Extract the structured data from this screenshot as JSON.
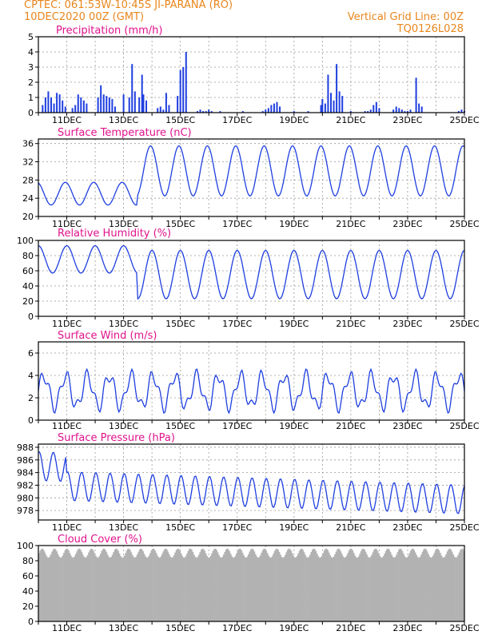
{
  "header": {
    "line1_left": "CPTEC:   061:53W-10:45S   JI-PARANA (RO)",
    "line2_left": "10DEC2020 00Z (GMT)",
    "line1_right": "Vertical Grid Line: 00Z",
    "line2_right": "TQ0126L028"
  },
  "colors": {
    "header": "#e8861c",
    "title": "#e0128c",
    "series": "#1f3fe0",
    "cloud": "#b2b2b2",
    "grid": "#9a9a9a"
  },
  "x_tick_labels": [
    "11DEC",
    "13DEC",
    "15DEC",
    "17DEC",
    "19DEC",
    "21DEC",
    "23DEC",
    "25DEC"
  ],
  "chart_data": [
    {
      "type": "bar",
      "title": "Precipitation (mm/h)",
      "x_unit": "days since 10DEC2020 00Z",
      "ylim": [
        0,
        5
      ],
      "yticks": [
        0,
        1,
        2,
        3,
        4,
        5
      ],
      "x": [
        0.15,
        0.25,
        0.35,
        0.45,
        0.55,
        0.65,
        0.75,
        0.85,
        0.95,
        1.2,
        1.3,
        1.4,
        1.5,
        1.6,
        1.7,
        2.1,
        2.2,
        2.3,
        2.4,
        2.5,
        2.6,
        2.7,
        3.0,
        3.2,
        3.3,
        3.4,
        3.55,
        3.65,
        3.7,
        3.8,
        4.2,
        4.3,
        4.4,
        4.5,
        4.6,
        4.9,
        5.0,
        5.1,
        5.2,
        5.6,
        5.7,
        5.8,
        5.9,
        6.0,
        6.1,
        6.4,
        7.2,
        7.9,
        8.0,
        8.1,
        8.2,
        8.3,
        8.4,
        8.5,
        9.0,
        9.5,
        9.95,
        10.0,
        10.1,
        10.2,
        10.3,
        10.4,
        10.5,
        10.6,
        10.7,
        11.0,
        11.5,
        11.6,
        11.7,
        11.8,
        11.9,
        12.0,
        12.5,
        12.6,
        12.7,
        12.8,
        12.9,
        13.0,
        13.1,
        13.3,
        13.4,
        13.5,
        14.8,
        14.9,
        15.0
      ],
      "values": [
        0.5,
        1.0,
        1.4,
        1.0,
        0.6,
        1.3,
        1.2,
        0.8,
        0.4,
        0.3,
        0.5,
        1.2,
        1.0,
        0.8,
        0.6,
        1.0,
        1.8,
        1.2,
        1.1,
        1.0,
        0.9,
        0.4,
        1.2,
        1.0,
        3.2,
        1.4,
        1.0,
        2.5,
        1.2,
        0.8,
        0.3,
        0.4,
        0.2,
        1.3,
        0.5,
        1.1,
        2.8,
        3.0,
        4.0,
        0.1,
        0.2,
        0.1,
        0.1,
        0.2,
        0.1,
        0.1,
        0.1,
        0.1,
        0.2,
        0.3,
        0.5,
        0.6,
        0.7,
        0.4,
        0.1,
        0.1,
        0.5,
        0.9,
        0.6,
        2.5,
        1.3,
        0.8,
        3.2,
        1.4,
        1.1,
        0.1,
        0.1,
        0.1,
        0.2,
        0.5,
        0.7,
        0.3,
        0.2,
        0.4,
        0.3,
        0.2,
        0.1,
        0.1,
        0.2,
        2.3,
        0.6,
        0.4,
        0.1,
        0.2,
        0.1
      ],
      "values_b": []
    }
  ]
}
